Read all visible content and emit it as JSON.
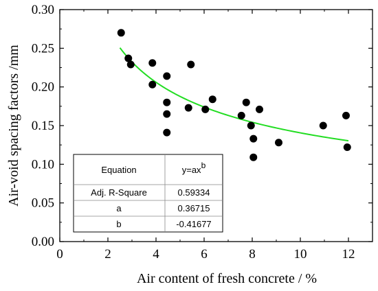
{
  "chart_data": {
    "type": "scatter",
    "xlabel": "Air content of fresh concrete / %",
    "ylabel": "Air-void spacing factors /mm",
    "xlim": [
      0,
      13
    ],
    "ylim": [
      0,
      0.3
    ],
    "xticks": [
      "0",
      "2",
      "4",
      "6",
      "8",
      "10",
      "12"
    ],
    "yticks": [
      "0.00",
      "0.05",
      "0.10",
      "0.15",
      "0.20",
      "0.25",
      "0.30"
    ],
    "grid": false,
    "points": [
      {
        "x": 2.55,
        "y": 0.27
      },
      {
        "x": 2.85,
        "y": 0.237
      },
      {
        "x": 2.95,
        "y": 0.229
      },
      {
        "x": 3.85,
        "y": 0.231
      },
      {
        "x": 3.85,
        "y": 0.203
      },
      {
        "x": 4.45,
        "y": 0.214
      },
      {
        "x": 4.45,
        "y": 0.18
      },
      {
        "x": 4.45,
        "y": 0.165
      },
      {
        "x": 4.45,
        "y": 0.141
      },
      {
        "x": 5.35,
        "y": 0.173
      },
      {
        "x": 5.45,
        "y": 0.229
      },
      {
        "x": 6.05,
        "y": 0.171
      },
      {
        "x": 6.35,
        "y": 0.184
      },
      {
        "x": 7.55,
        "y": 0.163
      },
      {
        "x": 7.75,
        "y": 0.18
      },
      {
        "x": 7.95,
        "y": 0.15
      },
      {
        "x": 8.05,
        "y": 0.133
      },
      {
        "x": 8.05,
        "y": 0.109
      },
      {
        "x": 8.3,
        "y": 0.171
      },
      {
        "x": 9.1,
        "y": 0.128
      },
      {
        "x": 10.95,
        "y": 0.15
      },
      {
        "x": 11.9,
        "y": 0.163
      },
      {
        "x": 11.95,
        "y": 0.122
      }
    ],
    "fit": {
      "a": 0.36715,
      "b": -0.41677,
      "x_range": [
        2.5,
        12
      ],
      "color": "#22dd22"
    },
    "point_color": "#000000",
    "table": {
      "equation_label": "Equation",
      "equation_base": "y=ax",
      "equation_exp": "b",
      "rows": [
        {
          "label": "Adj. R-Square",
          "value": "0.59334"
        },
        {
          "label": "a",
          "value": "0.36715"
        },
        {
          "label": "b",
          "value": "-0.41677"
        }
      ]
    }
  }
}
